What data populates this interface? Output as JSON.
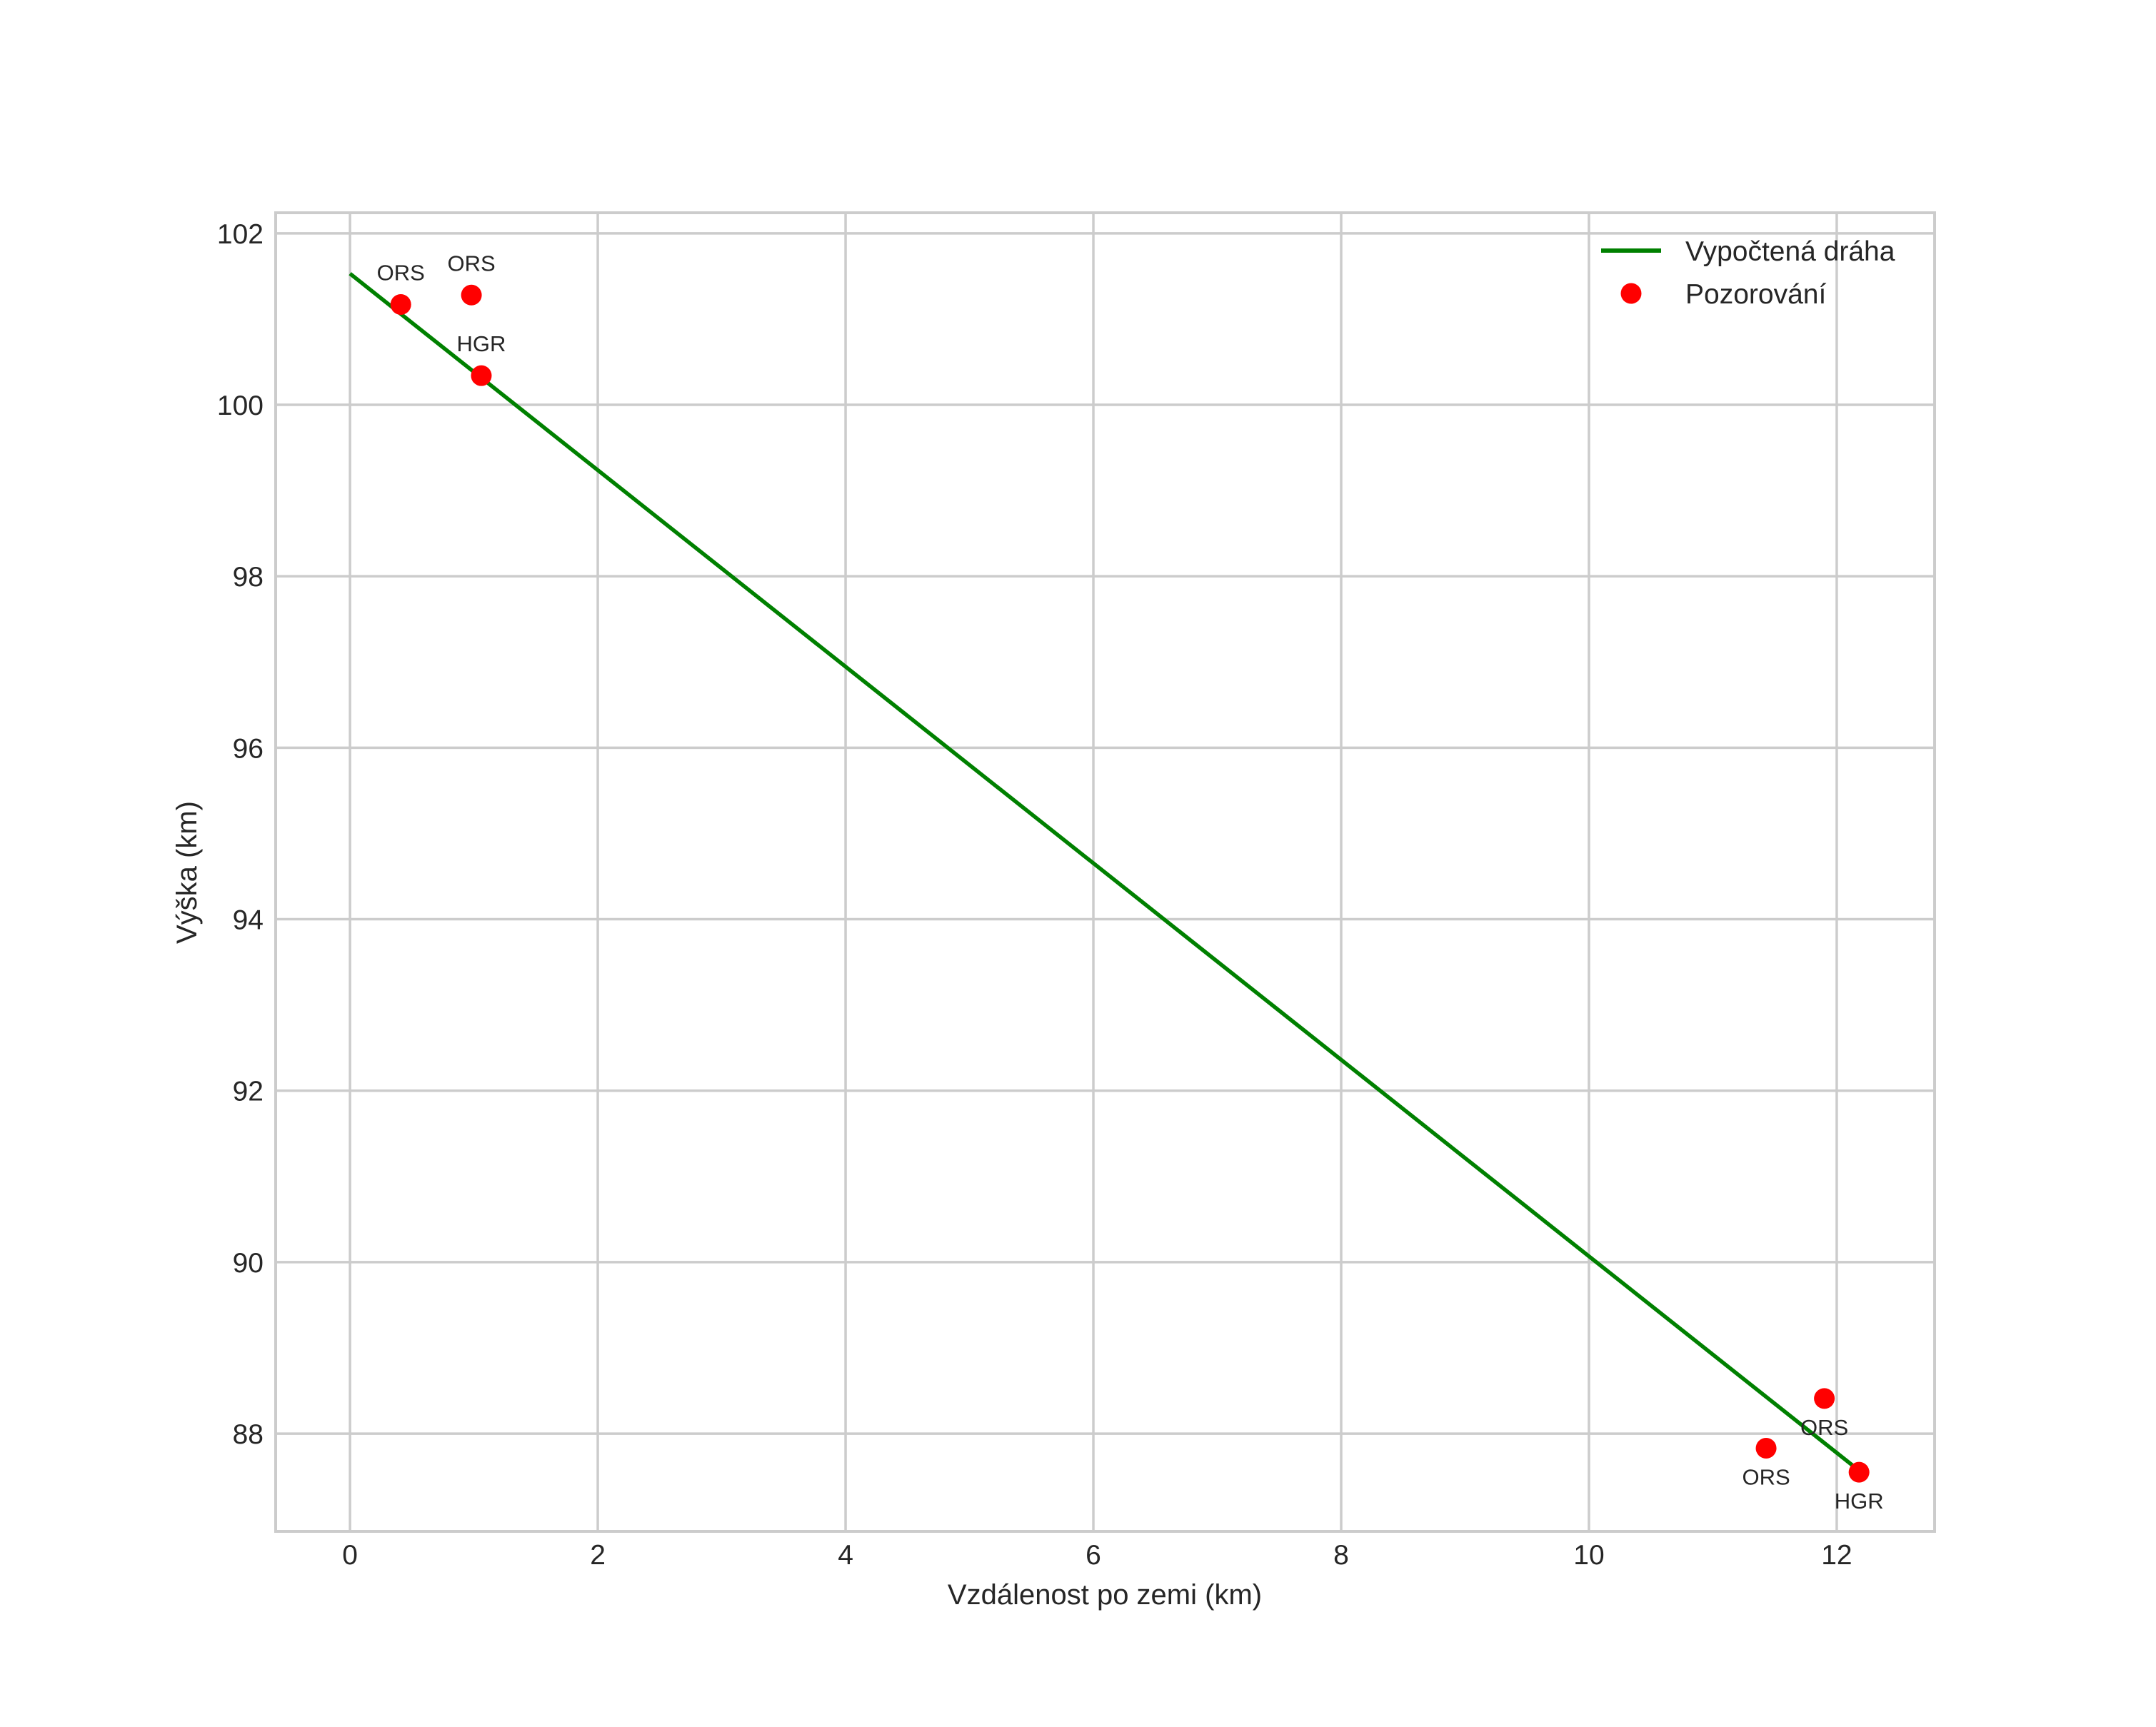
{
  "chart_data": {
    "type": "line",
    "title": "",
    "xlabel": "Vzdálenost po zemi (km)",
    "ylabel": "Výška (km)",
    "xlim": [
      -0.6,
      12.79
    ],
    "ylim": [
      86.86,
      102.24
    ],
    "xticks": [
      0,
      2,
      4,
      6,
      8,
      10,
      12
    ],
    "yticks": [
      88,
      90,
      92,
      94,
      96,
      98,
      100,
      102
    ],
    "grid": true,
    "legend_position": "upper right",
    "series": [
      {
        "name": "Vypočtená dráha",
        "type": "line",
        "color": "#008000",
        "x": [
          0.0,
          12.18
        ],
        "y": [
          101.53,
          87.57
        ]
      },
      {
        "name": "Pozorování",
        "type": "scatter",
        "color": "#ff0000",
        "points": [
          {
            "x": 0.41,
            "y": 101.17,
            "label": "ORS",
            "label_pos": "above"
          },
          {
            "x": 0.98,
            "y": 101.28,
            "label": "ORS",
            "label_pos": "above"
          },
          {
            "x": 1.06,
            "y": 100.34,
            "label": "HGR",
            "label_pos": "above"
          },
          {
            "x": 11.9,
            "y": 88.41,
            "label": "ORS",
            "label_pos": "below"
          },
          {
            "x": 11.43,
            "y": 87.83,
            "label": "ORS",
            "label_pos": "below"
          },
          {
            "x": 12.18,
            "y": 87.55,
            "label": "HGR",
            "label_pos": "below"
          }
        ]
      }
    ]
  },
  "legend": {
    "items": [
      {
        "label": "Vypočtená dráha",
        "kind": "line",
        "color": "#008000"
      },
      {
        "label": "Pozorování",
        "kind": "marker",
        "color": "#ff0000"
      }
    ]
  },
  "style": {
    "grid_color": "#cccccc",
    "frame_color": "#cccccc",
    "text_color": "#262626"
  }
}
